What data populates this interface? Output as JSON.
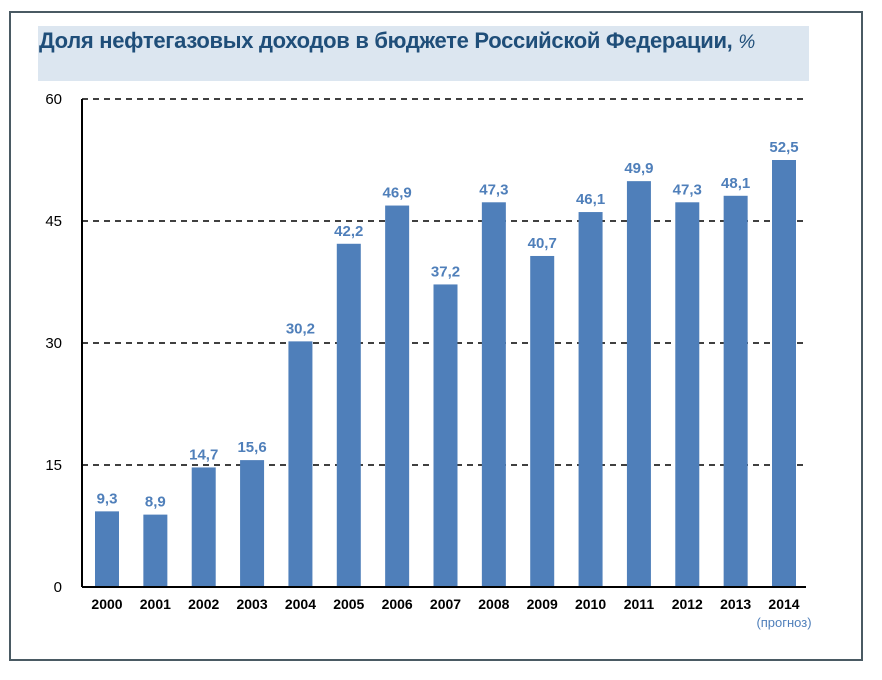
{
  "chart_data": {
    "type": "bar",
    "title": "Доля нефтегазовых доходов в бюджете Российской Федерации,",
    "title_unit": "%",
    "categories": [
      "2000",
      "2001",
      "2002",
      "2003",
      "2004",
      "2005",
      "2006",
      "2007",
      "2008",
      "2009",
      "2010",
      "2011",
      "2012",
      "2013",
      "2014"
    ],
    "values": [
      9.3,
      8.9,
      14.7,
      15.6,
      30.2,
      42.2,
      46.9,
      37.2,
      47.3,
      40.7,
      46.1,
      49.9,
      47.3,
      48.1,
      52.5
    ],
    "value_labels": [
      "9,3",
      "8,9",
      "14,7",
      "15,6",
      "30,2",
      "42,2",
      "46,9",
      "37,2",
      "47,3",
      "40,7",
      "46,1",
      "49,9",
      "47,3",
      "48,1",
      "52,5"
    ],
    "yticks": [
      "0",
      "15",
      "30",
      "45",
      "60"
    ],
    "ylim": [
      0,
      60
    ],
    "xlabel": "",
    "ylabel": "",
    "grid": true,
    "annotation": "(прогноз)",
    "bar_color": "#4f7fba"
  }
}
